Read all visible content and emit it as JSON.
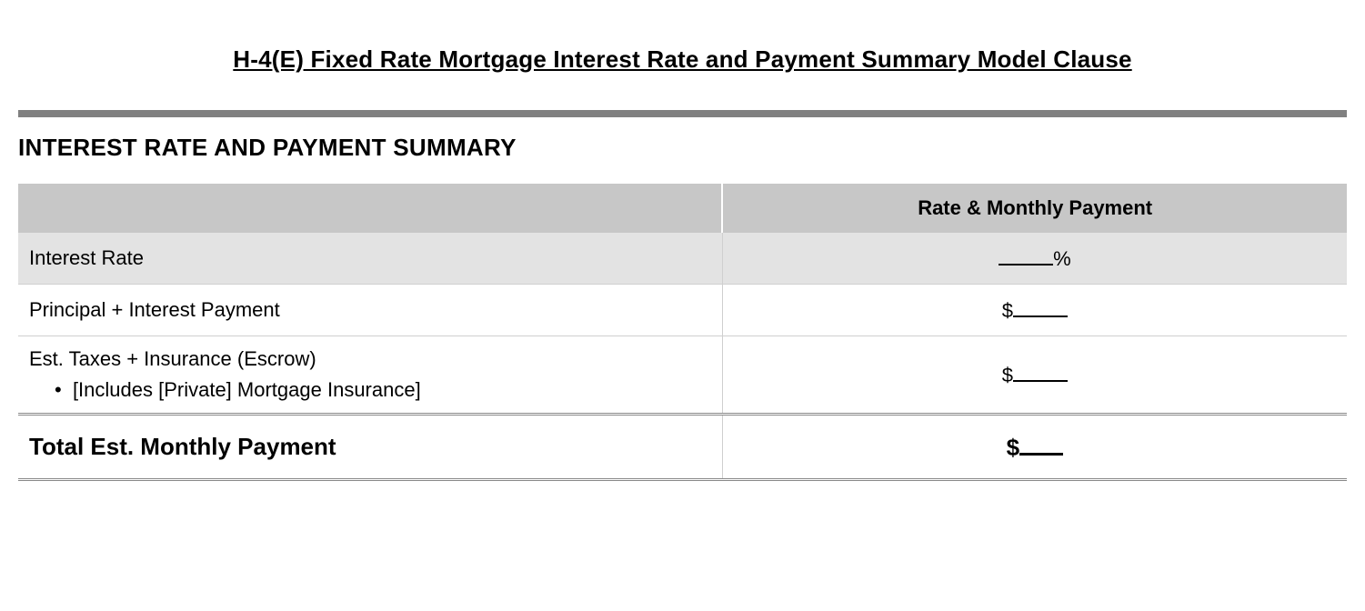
{
  "document": {
    "title": "H-4(E)  Fixed Rate Mortgage Interest Rate and Payment Summary Model Clause",
    "section_heading": "INTEREST RATE AND PAYMENT SUMMARY"
  },
  "table": {
    "header": {
      "left": "",
      "right": "Rate & Monthly Payment"
    },
    "rows": {
      "interest_rate": {
        "label": "Interest Rate",
        "value_suffix": "%"
      },
      "principal_interest": {
        "label": "Principal + Interest Payment",
        "value_prefix": "$"
      },
      "escrow": {
        "label": "Est. Taxes + Insurance (Escrow)",
        "sublabel": "[Includes [Private] Mortgage Insurance]",
        "value_prefix": "$"
      },
      "total": {
        "label": "Total Est. Monthly Payment",
        "value_prefix": "$"
      }
    }
  },
  "style": {
    "title_fontsize": 26,
    "body_fontsize": 22,
    "total_fontsize": 26,
    "background": "#ffffff",
    "text_color": "#000000",
    "header_row_bg": "#c7c7c7",
    "shaded_row_bg": "#e3e3e3",
    "thick_rule_color": "#808080",
    "cell_border_color": "#cfcfcf",
    "double_rule_color": "#888888",
    "blank_underline_color": "#000000",
    "column_split_pct": 53
  }
}
